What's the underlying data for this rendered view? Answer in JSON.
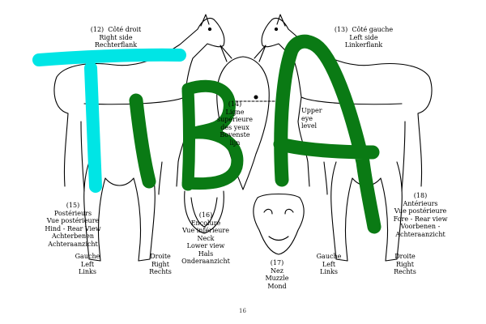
{
  "labels": {
    "right_side": "(12)  Côté droit\nRight side\nRechterflank",
    "left_side": "(13)  Côté gauche\nLeft side\nLinkerflank",
    "upper_eye": "(14)\nLigne\nsupérieure\ndes yeux\nBovenste\nlijn",
    "upper_eye_en": "Upper\neye\nlevel",
    "hind_view": "(15)\nPostérieurs\nVue postérieure\nHind - Rear View\nAchterbenen\nAchteraanzicht",
    "neck_view": "(16)\nEncolure\nVue inférieure\nNeck\nLower view\nHals\nOnderaanzicht",
    "muzzle": "(17)\nNez\nMuzzle\nMond",
    "fore_view": "(18)\nAntérieurs\nVue postérieure\nFore - Rear view\nVoorbenen -\nAchteraanzicht",
    "hind_left": "Gauche\nLeft\nLinks",
    "hind_right": "Droite\nRight\nRechts",
    "fore_left": "Gauche\nLeft\nLinks",
    "fore_right": "Droite\nRight\nRechts"
  },
  "page_number": "16",
  "overlay_text": {
    "cyan_letter": "T",
    "green_letters": "IBA"
  },
  "colors": {
    "ink": "#000000",
    "overlay_cyan": "#00e5e5",
    "overlay_green": "#0a7a14"
  }
}
